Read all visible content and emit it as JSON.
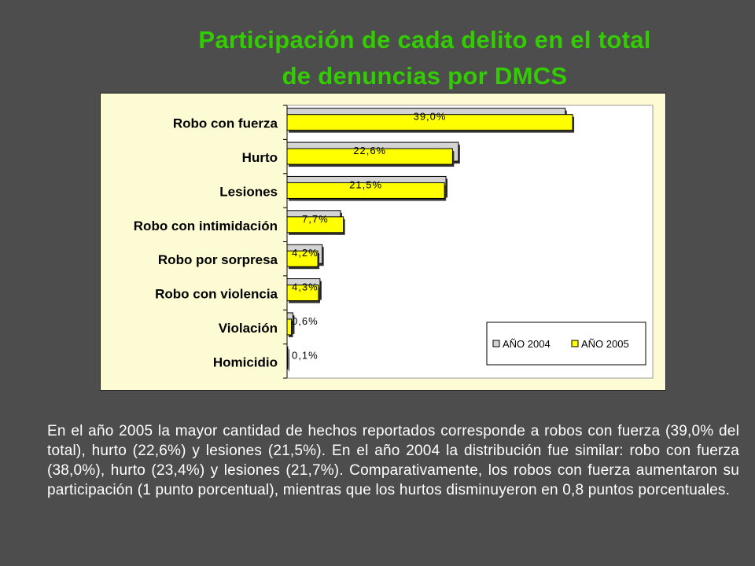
{
  "title": {
    "line1": "Participación de cada delito en el total",
    "line2": "de denuncias por DMCS"
  },
  "colors": {
    "background": "#4d4d4d",
    "title": "#33cc00",
    "chart_bg": "#fdfbd3",
    "plot_bg": "#ffffff",
    "bar_2004": "#d4d4d4",
    "bar_2005": "#ffff00",
    "text": "#ffffff"
  },
  "chart_data": {
    "type": "bar",
    "orientation": "horizontal",
    "categories": [
      "Robo con fuerza",
      "Hurto",
      "Lesiones",
      "Robo con intimidación",
      "Robo por sorpresa",
      "Robo con violencia",
      "Violación",
      "Homicidio"
    ],
    "series": [
      {
        "name": "AÑO 2004",
        "values": [
          38.0,
          23.4,
          21.7,
          7.3,
          4.8,
          4.5,
          0.8,
          0.1
        ]
      },
      {
        "name": "AÑO 2005",
        "values": [
          39.0,
          22.6,
          21.5,
          7.7,
          4.2,
          4.3,
          0.6,
          0.1
        ]
      }
    ],
    "data_labels": [
      "39,0%",
      "22,6%",
      "21,5%",
      "7,7%",
      "4,2%",
      "4,3%",
      "0,6%",
      "0,1%"
    ],
    "xlim": [
      0,
      50
    ],
    "grid": false,
    "legend_position": "bottom-right"
  },
  "paragraph": "En el año 2005 la mayor cantidad de hechos reportados corresponde a robos con fuerza (39,0% del total), hurto (22,6%) y lesiones (21,5%). En el año 2004 la distribución fue similar: robo con fuerza (38,0%), hurto (23,4%) y lesiones (21,7%). Comparativamente, los robos con fuerza aumentaron su participación (1 punto porcentual), mientras que los hurtos disminuyeron en 0,8 puntos porcentuales."
}
